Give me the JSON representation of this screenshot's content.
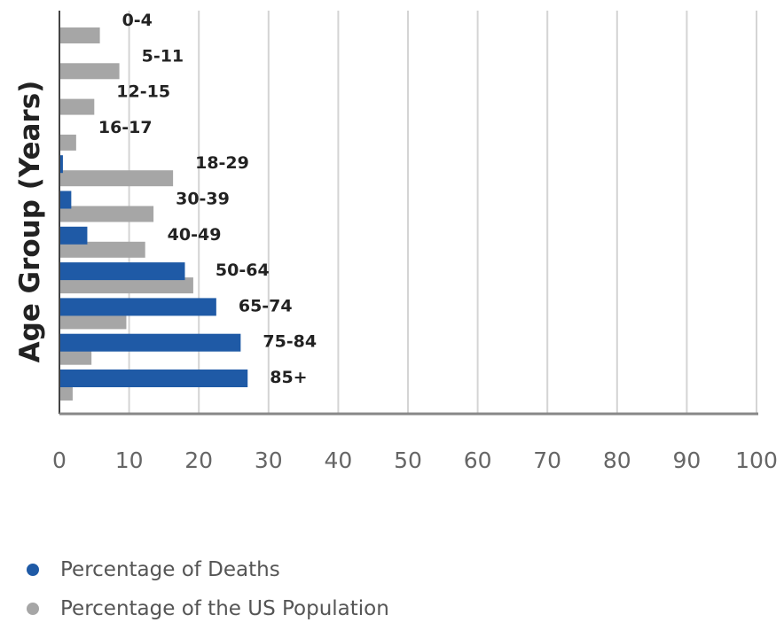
{
  "chart_data": {
    "type": "bar",
    "orientation": "horizontal",
    "categories": [
      "0-4",
      "5-11",
      "12-15",
      "16-17",
      "18-29",
      "30-39",
      "40-49",
      "50-64",
      "65-74",
      "75-84",
      "85+"
    ],
    "series": [
      {
        "name": "Percentage of Deaths",
        "color": "#1f5aa6",
        "values": [
          0,
          0,
          0,
          0,
          0.5,
          1.7,
          4,
          18,
          22.5,
          26,
          27
        ]
      },
      {
        "name": "Percentage of the US Population",
        "color": "#a6a6a6",
        "values": [
          5.8,
          8.6,
          5,
          2.4,
          16.3,
          13.5,
          12.3,
          19.2,
          9.6,
          4.6,
          1.9
        ]
      }
    ],
    "xlim": [
      0,
      100
    ],
    "xticks": [
      0,
      10,
      20,
      30,
      40,
      50,
      60,
      70,
      80,
      90,
      100
    ],
    "ylabel": "Age Group (Years)",
    "xlabel": "",
    "grid": "vertical",
    "legend_position": "bottom-left"
  }
}
